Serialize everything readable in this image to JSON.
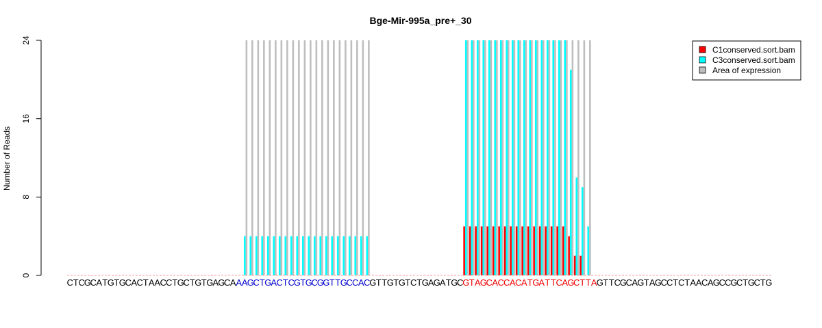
{
  "chart_data": {
    "type": "bar",
    "title": "Bge-Mir-995a_pre+_30",
    "xlabel": "",
    "ylabel": "Number of Reads",
    "ylim": [
      0,
      24
    ],
    "yticks": [
      "0",
      "8",
      "16",
      "24"
    ],
    "legend_position": "top-right",
    "grid": false,
    "sequence": "CTCGCATGTGCACTAACCTGCTGTGAGCAAAGCTGACTCGTGCGGTTGCCACGTTGTGTCTGAGATGCGTAGCACCACATGATTCAGCTTAGTTCGCAGTAGCCTCTAACAGCCGCTGCTG",
    "highlights": [
      {
        "start": 29,
        "end": 51,
        "color": "#0000cc"
      },
      {
        "start": 68,
        "end": 90,
        "color": "#ee0000"
      }
    ],
    "series": [
      {
        "name": "C1conserved.sort.bam",
        "color": "#ff0000",
        "values": [
          0,
          0,
          0,
          0,
          0,
          0,
          0,
          0,
          0,
          0,
          0,
          0,
          0,
          0,
          0,
          0,
          0,
          0,
          0,
          0,
          0,
          0,
          0,
          0,
          0,
          0,
          0,
          0,
          0,
          0,
          0,
          0,
          0,
          0,
          0,
          0,
          0,
          0,
          0,
          0,
          0,
          0,
          0,
          0,
          0,
          0,
          0,
          0,
          0,
          0,
          0,
          0,
          0,
          0,
          0,
          0,
          0,
          0,
          0,
          0,
          0,
          0,
          0,
          0,
          0,
          0,
          0,
          0,
          5,
          5,
          5,
          5,
          5,
          5,
          5,
          5,
          5,
          5,
          5,
          5,
          5,
          5,
          5,
          5,
          5,
          5,
          4,
          2,
          2,
          0,
          0,
          0,
          0,
          0,
          0,
          0,
          0,
          0,
          0,
          0,
          0,
          0,
          0,
          0,
          0,
          0,
          0,
          0,
          0,
          0,
          0,
          0,
          0,
          0,
          0,
          0,
          0,
          0,
          0,
          0,
          0,
          0
        ]
      },
      {
        "name": "C3conserved.sort.bam",
        "color": "#00ffff",
        "values": [
          0,
          0,
          0,
          0,
          0,
          0,
          0,
          0,
          0,
          0,
          0,
          0,
          0,
          0,
          0,
          0,
          0,
          0,
          0,
          0,
          0,
          0,
          0,
          0,
          0,
          0,
          0,
          0,
          0,
          0,
          4,
          4,
          4,
          4,
          4,
          4,
          4,
          4,
          4,
          4,
          4,
          4,
          4,
          4,
          4,
          4,
          4,
          4,
          4,
          4,
          4,
          4,
          0,
          0,
          0,
          0,
          0,
          0,
          0,
          0,
          0,
          0,
          0,
          0,
          0,
          0,
          0,
          0,
          24,
          24,
          24,
          24,
          24,
          24,
          24,
          24,
          24,
          24,
          24,
          24,
          24,
          24,
          24,
          24,
          24,
          24,
          21,
          10,
          9,
          5,
          0,
          0,
          0,
          0,
          0,
          0,
          0,
          0,
          0,
          0,
          0,
          0,
          0,
          0,
          0,
          0,
          0,
          0,
          0,
          0,
          0,
          0,
          0,
          0,
          0,
          0,
          0,
          0,
          0,
          0,
          0,
          0
        ]
      },
      {
        "name": "Area of expression",
        "color": "#bebebe",
        "values": [
          0,
          0,
          0,
          0,
          0,
          0,
          0,
          0,
          0,
          0,
          0,
          0,
          0,
          0,
          0,
          0,
          0,
          0,
          0,
          0,
          0,
          0,
          0,
          0,
          0,
          0,
          0,
          0,
          0,
          0,
          24,
          24,
          24,
          24,
          24,
          24,
          24,
          24,
          24,
          24,
          24,
          24,
          24,
          24,
          24,
          24,
          24,
          24,
          24,
          24,
          24,
          24,
          0,
          0,
          0,
          0,
          0,
          0,
          0,
          0,
          0,
          0,
          0,
          0,
          0,
          0,
          0,
          0,
          24,
          24,
          24,
          24,
          24,
          24,
          24,
          24,
          24,
          24,
          24,
          24,
          24,
          24,
          24,
          24,
          24,
          24,
          24,
          24,
          24,
          24,
          0,
          0,
          0,
          0,
          0,
          0,
          0,
          0,
          0,
          0,
          0,
          0,
          0,
          0,
          0,
          0,
          0,
          0,
          0,
          0,
          0,
          0,
          0,
          0,
          0,
          0,
          0,
          0,
          0,
          0,
          0,
          0
        ]
      }
    ]
  }
}
